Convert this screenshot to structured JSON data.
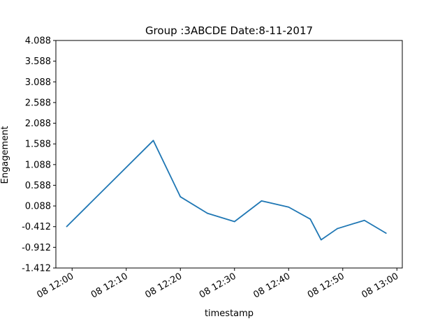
{
  "chart_data": {
    "type": "line",
    "title": "Group :3ABCDE Date:8-11-2017",
    "xlabel": "timestamp",
    "ylabel": "Engagement",
    "ylim": [
      -1.412,
      4.088
    ],
    "xlim": [
      "2017-11-08 11:57",
      "2017-11-08 13:01"
    ],
    "grid": false,
    "y_ticks": [
      "-1.412",
      "-0.912",
      "-0.412",
      "0.088",
      "0.588",
      "1.088",
      "1.588",
      "2.088",
      "2.588",
      "3.088",
      "3.588",
      "4.088"
    ],
    "x_ticks": [
      {
        "time": "2017-11-08 12:00",
        "label": "08 12:00"
      },
      {
        "time": "2017-11-08 12:10",
        "label": "08 12:10"
      },
      {
        "time": "2017-11-08 12:20",
        "label": "08 12:20"
      },
      {
        "time": "2017-11-08 12:30",
        "label": "08 12:30"
      },
      {
        "time": "2017-11-08 12:40",
        "label": "08 12:40"
      },
      {
        "time": "2017-11-08 12:50",
        "label": "08 12:50"
      },
      {
        "time": "2017-11-08 13:00",
        "label": "08 13:00"
      }
    ],
    "series": [
      {
        "color": "#1f77b4",
        "points": [
          {
            "x": "2017-11-08 11:59",
            "y": -0.41
          },
          {
            "x": "2017-11-08 12:15",
            "y": 1.67
          },
          {
            "x": "2017-11-08 12:20",
            "y": 0.31
          },
          {
            "x": "2017-11-08 12:25",
            "y": -0.09
          },
          {
            "x": "2017-11-08 12:30",
            "y": -0.29
          },
          {
            "x": "2017-11-08 12:35",
            "y": 0.21
          },
          {
            "x": "2017-11-08 12:40",
            "y": 0.06
          },
          {
            "x": "2017-11-08 12:44",
            "y": -0.23
          },
          {
            "x": "2017-11-08 12:46",
            "y": -0.73
          },
          {
            "x": "2017-11-08 12:49",
            "y": -0.46
          },
          {
            "x": "2017-11-08 12:54",
            "y": -0.26
          },
          {
            "x": "2017-11-08 12:58",
            "y": -0.57
          }
        ]
      }
    ]
  }
}
